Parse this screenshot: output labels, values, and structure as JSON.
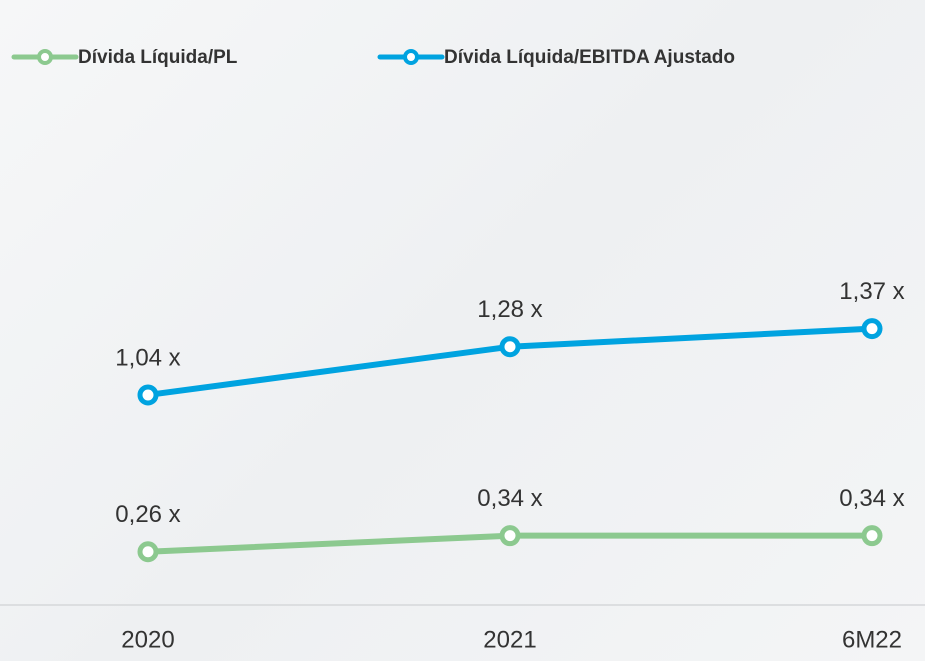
{
  "chart_data": {
    "type": "line",
    "categories": [
      "2020",
      "2021",
      "6M22"
    ],
    "series": [
      {
        "name": "Dívida Líquida/PL",
        "color": "#8cc98f",
        "values": [
          0.26,
          0.34,
          0.34
        ],
        "value_labels": [
          "0,26 x",
          "0,34 x",
          "0,34 x"
        ]
      },
      {
        "name": "Dívida Líquida/EBITDA Ajustado",
        "color": "#00a3e0",
        "values": [
          1.04,
          1.28,
          1.37
        ],
        "value_labels": [
          "1,04 x",
          "1,28 x",
          "1,37 x"
        ]
      }
    ],
    "ylim": [
      0,
      2.5
    ],
    "legend": "top-left"
  }
}
